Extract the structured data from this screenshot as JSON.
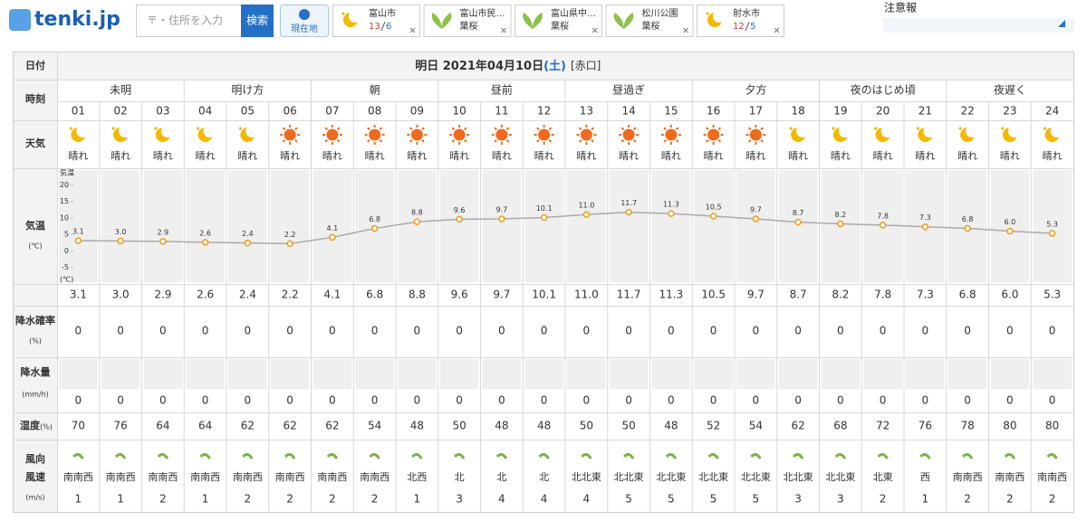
{
  "header": {
    "logo": "tenki.jp",
    "search_placeholder": "〒・住所を入力",
    "search_button": "検索",
    "location_button": "現在地",
    "favorites": [
      {
        "name": "富山市",
        "icon": "moon",
        "high": 13,
        "low": 6
      },
      {
        "name": "富山市民…",
        "icon": "leaf",
        "status": "葉桜"
      },
      {
        "name": "富山県中…",
        "icon": "leaf",
        "status": "葉桜"
      },
      {
        "name": "松川公園",
        "icon": "leaf",
        "status": "葉桜"
      },
      {
        "name": "射水市",
        "icon": "moon",
        "high": 12,
        "low": 5
      }
    ],
    "alert_title": "注意報"
  },
  "table": {
    "row_labels": {
      "date": "日付",
      "time": "時刻",
      "weather": "天気",
      "temp": "気温",
      "temp_unit": "(℃)",
      "precip_prob": "降水確率",
      "precip_prob_unit": "(%)",
      "precip": "降水量",
      "precip_unit": "(mm/h)",
      "humidity": "湿度",
      "humidity_unit": "(%)",
      "wind_dir": "風向",
      "wind_speed": "風速",
      "wind_unit": "(m/s)"
    },
    "day": "明日",
    "date": "2021年04月10日",
    "weekday": "(土)",
    "rokuyo": "[赤口]",
    "periods": [
      "未明",
      "明け方",
      "朝",
      "昼前",
      "昼過ぎ",
      "夕方",
      "夜のはじめ頃",
      "夜遅く"
    ],
    "hours": [
      "01",
      "02",
      "03",
      "04",
      "05",
      "06",
      "07",
      "08",
      "09",
      "10",
      "11",
      "12",
      "13",
      "14",
      "15",
      "16",
      "17",
      "18",
      "19",
      "20",
      "21",
      "22",
      "23",
      "24"
    ],
    "weather": [
      "晴れ",
      "晴れ",
      "晴れ",
      "晴れ",
      "晴れ",
      "晴れ",
      "晴れ",
      "晴れ",
      "晴れ",
      "晴れ",
      "晴れ",
      "晴れ",
      "晴れ",
      "晴れ",
      "晴れ",
      "晴れ",
      "晴れ",
      "晴れ",
      "晴れ",
      "晴れ",
      "晴れ",
      "晴れ",
      "晴れ",
      "晴れ"
    ],
    "weather_icons": [
      "moon",
      "moon",
      "moon",
      "moon",
      "moon",
      "sun",
      "sun",
      "sun",
      "sun",
      "sun",
      "sun",
      "sun",
      "sun",
      "sun",
      "sun",
      "sun",
      "sun",
      "moon",
      "moon",
      "moon",
      "moon",
      "moon",
      "moon",
      "moon"
    ],
    "temp_chart": {
      "type": "line",
      "y_title": "気温",
      "y_unit": "(℃)",
      "ylim": [
        -10,
        25
      ],
      "yticks": [
        -5,
        0,
        5,
        10,
        15,
        20
      ],
      "color": "#aaaaaa",
      "marker_color": "#f39c12",
      "values": [
        3.1,
        3.0,
        2.9,
        2.6,
        2.4,
        2.2,
        4.1,
        6.8,
        8.8,
        9.6,
        9.7,
        10.1,
        11.0,
        11.7,
        11.3,
        10.5,
        9.7,
        8.7,
        8.2,
        7.8,
        7.3,
        6.8,
        6.0,
        5.3
      ],
      "value_labels": [
        "3.1",
        "3.0",
        "2.9",
        "2.6",
        "2.4",
        "2.2",
        "4.1",
        "6.8",
        "8.8",
        "9.6",
        "9.7",
        "10.1",
        "11.0",
        "11.7",
        "11.3",
        "10.5",
        "9.7",
        "8.7",
        "8.2",
        "7.8",
        "7.3",
        "6.8",
        "6.0",
        "5.3"
      ]
    },
    "precip_prob": [
      0,
      0,
      0,
      0,
      0,
      0,
      0,
      0,
      0,
      0,
      0,
      0,
      0,
      0,
      0,
      0,
      0,
      0,
      0,
      0,
      0,
      0,
      0,
      0
    ],
    "precip": [
      0,
      0,
      0,
      0,
      0,
      0,
      0,
      0,
      0,
      0,
      0,
      0,
      0,
      0,
      0,
      0,
      0,
      0,
      0,
      0,
      0,
      0,
      0,
      0
    ],
    "humidity": [
      70,
      76,
      64,
      64,
      62,
      62,
      62,
      54,
      48,
      50,
      48,
      48,
      50,
      50,
      48,
      52,
      54,
      62,
      68,
      72,
      76,
      78,
      80,
      80
    ],
    "wind_direction": [
      "南南西",
      "南南西",
      "南南西",
      "南南西",
      "南南西",
      "南南西",
      "南南西",
      "南南西",
      "北西",
      "北",
      "北",
      "北",
      "北北東",
      "北北東",
      "北北東",
      "北北東",
      "北北東",
      "北北東",
      "北北東",
      "北東",
      "西",
      "南南西",
      "南南西",
      "南南西"
    ],
    "wind_speed": [
      1,
      1,
      2,
      1,
      2,
      2,
      2,
      2,
      1,
      3,
      4,
      4,
      4,
      5,
      5,
      5,
      5,
      3,
      3,
      2,
      1,
      2,
      2,
      2
    ]
  }
}
